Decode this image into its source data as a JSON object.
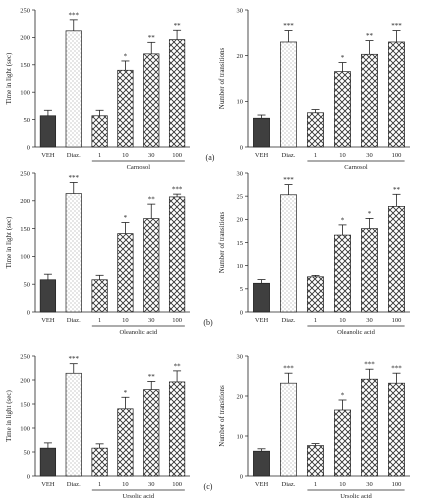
{
  "figure": {
    "panel_labels": [
      "(a)",
      "(b)",
      "(c)"
    ]
  },
  "chart_data": [
    {
      "type": "bar",
      "panel": "a",
      "position": "left",
      "ylabel": "Time in light (sec)",
      "ylim": [
        0,
        250
      ],
      "yticks": [
        0,
        50,
        100,
        150,
        200,
        250
      ],
      "categories": [
        "VEH",
        "Diaz.",
        "1",
        "10",
        "30",
        "100"
      ],
      "values": [
        57,
        212,
        57,
        140,
        170,
        196
      ],
      "errors": [
        10,
        20,
        10,
        17,
        21,
        17
      ],
      "significance": [
        "",
        "***",
        "",
        "*",
        "**",
        "**"
      ],
      "group_label": "Carnosol",
      "bar_patterns": [
        "solid",
        "dots",
        "cross",
        "cross",
        "cross",
        "cross"
      ],
      "grid": false
    },
    {
      "type": "bar",
      "panel": "a",
      "position": "right",
      "ylabel": "Number of transitions",
      "ylim": [
        0,
        30
      ],
      "yticks": [
        0,
        10,
        20,
        30
      ],
      "categories": [
        "VEH",
        "Diaz.",
        "1",
        "10",
        "30",
        "100"
      ],
      "values": [
        6.3,
        23,
        7.5,
        16.5,
        20.3,
        23
      ],
      "errors": [
        0.7,
        2.5,
        0.7,
        2,
        3,
        2.5
      ],
      "significance": [
        "",
        "***",
        "",
        "*",
        "**",
        "***"
      ],
      "group_label": "Carnosol",
      "bar_patterns": [
        "solid",
        "dots",
        "cross",
        "cross",
        "cross",
        "cross"
      ],
      "grid": false
    },
    {
      "type": "bar",
      "panel": "b",
      "position": "left",
      "ylabel": "Time in light (sec)",
      "ylim": [
        0,
        250
      ],
      "yticks": [
        0,
        50,
        100,
        150,
        200,
        250
      ],
      "categories": [
        "VEH",
        "Diaz.",
        "1",
        "10",
        "30",
        "100"
      ],
      "values": [
        58,
        213,
        58,
        141,
        168,
        207
      ],
      "errors": [
        10,
        20,
        8,
        20,
        26,
        5
      ],
      "significance": [
        "",
        "***",
        "",
        "*",
        "**",
        "***"
      ],
      "group_label": "Oleanolic acid",
      "bar_patterns": [
        "solid",
        "dots",
        "cross",
        "cross",
        "cross",
        "cross"
      ],
      "grid": false
    },
    {
      "type": "bar",
      "panel": "b",
      "position": "right",
      "ylabel": "Number of transitions",
      "ylim": [
        0,
        30
      ],
      "yticks": [
        0,
        5,
        10,
        15,
        20,
        25,
        30
      ],
      "ytick_labels": [
        "0",
        "5",
        "10",
        "15",
        "20",
        "25",
        "30"
      ],
      "categories": [
        "VEH",
        "Diaz.",
        "1",
        "10",
        "30",
        "100"
      ],
      "values": [
        6.2,
        25.3,
        7.6,
        16.6,
        18,
        22.8
      ],
      "errors": [
        0.8,
        2.2,
        0.3,
        2.2,
        2.2,
        2.6
      ],
      "significance": [
        "",
        "***",
        "",
        "*",
        "*",
        "**"
      ],
      "group_label": "Oleanolic acid",
      "bar_patterns": [
        "solid",
        "dots",
        "cross",
        "cross",
        "cross",
        "cross"
      ],
      "grid": false
    },
    {
      "type": "bar",
      "panel": "c",
      "position": "left",
      "ylabel": "Time in light (sec)",
      "ylim": [
        0,
        250
      ],
      "yticks": [
        0,
        50,
        100,
        150,
        200,
        250
      ],
      "categories": [
        "VEH",
        "Diaz.",
        "1",
        "10",
        "30",
        "100"
      ],
      "values": [
        58,
        214,
        58,
        140,
        180,
        196
      ],
      "errors": [
        11,
        20,
        9,
        24,
        17,
        23
      ],
      "significance": [
        "",
        "***",
        "",
        "*",
        "**",
        "**"
      ],
      "group_label": "Ursolic acid",
      "bar_patterns": [
        "solid",
        "dots",
        "cross",
        "cross",
        "cross",
        "cross"
      ],
      "grid": false
    },
    {
      "type": "bar",
      "panel": "c",
      "position": "right",
      "ylabel": "Number of transitions",
      "ylim": [
        0,
        30
      ],
      "yticks": [
        0,
        10,
        20,
        30
      ],
      "categories": [
        "VEH",
        "Diaz.",
        "1",
        "10",
        "30",
        "100"
      ],
      "values": [
        6.2,
        23.2,
        7.6,
        16.5,
        24.2,
        23.2
      ],
      "errors": [
        0.6,
        2.5,
        0.5,
        2.5,
        2.5,
        2.5
      ],
      "significance": [
        "",
        "***",
        "",
        "*",
        "***",
        "***"
      ],
      "group_label": "Ursolic acid",
      "bar_patterns": [
        "solid",
        "dots",
        "cross",
        "cross",
        "cross",
        "cross"
      ],
      "grid": false
    }
  ]
}
